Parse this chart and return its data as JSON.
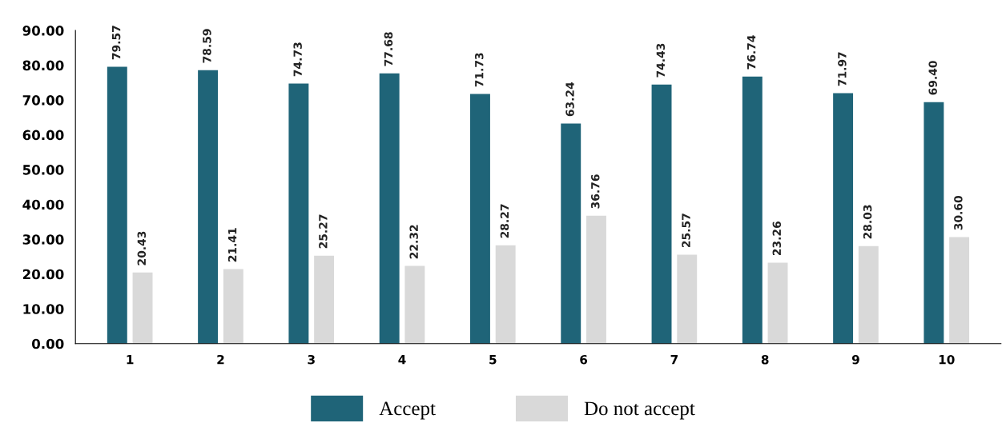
{
  "chart_data": {
    "type": "bar",
    "categories": [
      "1",
      "2",
      "3",
      "4",
      "5",
      "6",
      "7",
      "8",
      "9",
      "10"
    ],
    "series": [
      {
        "name": "Accept",
        "color": "#1f6478",
        "values": [
          79.57,
          78.59,
          74.73,
          77.68,
          71.73,
          63.24,
          74.43,
          76.74,
          71.97,
          69.4
        ],
        "value_labels": [
          "79.57",
          "78.59",
          "74.73",
          "77.68",
          "71.73",
          "63.24",
          "74.43",
          "76.74",
          "71.97",
          "69.40"
        ]
      },
      {
        "name": "Do not accept",
        "color": "#d9d9d9",
        "values": [
          20.43,
          21.41,
          25.27,
          22.32,
          28.27,
          36.76,
          25.57,
          23.26,
          28.03,
          30.6
        ],
        "value_labels": [
          "20.43",
          "21.41",
          "25.27",
          "22.32",
          "28.27",
          "36.76",
          "25.57",
          "23.26",
          "28.03",
          "30.60"
        ]
      }
    ],
    "ylim": [
      0,
      90
    ],
    "yticks": [
      {
        "value": 0,
        "label": "0.00"
      },
      {
        "value": 10,
        "label": "10.00"
      },
      {
        "value": 20,
        "label": "20.00"
      },
      {
        "value": 30,
        "label": "30.00"
      },
      {
        "value": 40,
        "label": "40.00"
      },
      {
        "value": 50,
        "label": "50.00"
      },
      {
        "value": 60,
        "label": "60.00"
      },
      {
        "value": 70,
        "label": "70.00"
      },
      {
        "value": 80,
        "label": "80.00"
      },
      {
        "value": 90,
        "label": "90.00"
      }
    ],
    "grid": false,
    "legend": "bottom"
  }
}
